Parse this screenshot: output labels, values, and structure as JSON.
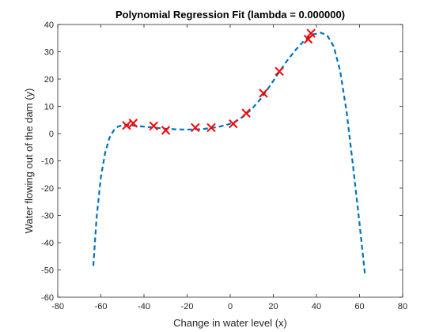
{
  "chart_data": {
    "type": "scatter",
    "title": "Polynomial Regression Fit (lambda = 0.000000)",
    "xlabel": "Change in water level (x)",
    "ylabel": "Water flowing out of the dam (y)",
    "xlim": [
      -80,
      80
    ],
    "ylim": [
      -60,
      40
    ],
    "xticks": [
      -80,
      -60,
      -40,
      -20,
      0,
      20,
      40,
      60,
      80
    ],
    "yticks": [
      -60,
      -50,
      -40,
      -30,
      -20,
      -10,
      0,
      10,
      20,
      30,
      40
    ],
    "grid": false,
    "legend": "none",
    "colors": {
      "points": "#ff0000",
      "fit": "#0072bd",
      "axis": "#262626"
    },
    "series": [
      {
        "type": "scatter",
        "marker": "x",
        "points": [
          [
            -48.1,
            3.0
          ],
          [
            -45.0,
            3.8
          ],
          [
            -35.5,
            2.8
          ],
          [
            -29.9,
            1.2
          ],
          [
            -16.2,
            2.2
          ],
          [
            -8.8,
            2.2
          ],
          [
            1.4,
            3.6
          ],
          [
            7.4,
            7.5
          ],
          [
            15.4,
            14.8
          ],
          [
            22.8,
            22.8
          ],
          [
            36.2,
            34.6
          ],
          [
            37.5,
            36.8
          ]
        ]
      },
      {
        "type": "line",
        "style": "dashed",
        "points": [
          [
            -63.5,
            -48.5
          ],
          [
            -62,
            -31
          ],
          [
            -60,
            -16
          ],
          [
            -58,
            -7
          ],
          [
            -56,
            -1.5
          ],
          [
            -54,
            1.2
          ],
          [
            -52,
            2.6
          ],
          [
            -50,
            3.1
          ],
          [
            -48,
            3.2
          ],
          [
            -46,
            3.0
          ],
          [
            -42,
            2.7
          ],
          [
            -38,
            2.4
          ],
          [
            -34,
            2.1
          ],
          [
            -30,
            1.8
          ],
          [
            -26,
            1.6
          ],
          [
            -22,
            1.5
          ],
          [
            -18,
            1.5
          ],
          [
            -14,
            1.6
          ],
          [
            -10,
            1.9
          ],
          [
            -6,
            2.4
          ],
          [
            -2,
            3.1
          ],
          [
            2,
            4.2
          ],
          [
            6,
            6.2
          ],
          [
            10,
            9.0
          ],
          [
            14,
            12.6
          ],
          [
            18,
            17.0
          ],
          [
            22,
            21.7
          ],
          [
            26,
            26.3
          ],
          [
            30,
            30.4
          ],
          [
            34,
            33.8
          ],
          [
            38,
            36.3
          ],
          [
            42,
            37.0
          ],
          [
            45,
            36.0
          ],
          [
            48,
            32.0
          ],
          [
            51,
            23.0
          ],
          [
            54,
            8.0
          ],
          [
            57,
            -12.0
          ],
          [
            60,
            -33.0
          ],
          [
            62.5,
            -51.5
          ]
        ]
      }
    ]
  }
}
